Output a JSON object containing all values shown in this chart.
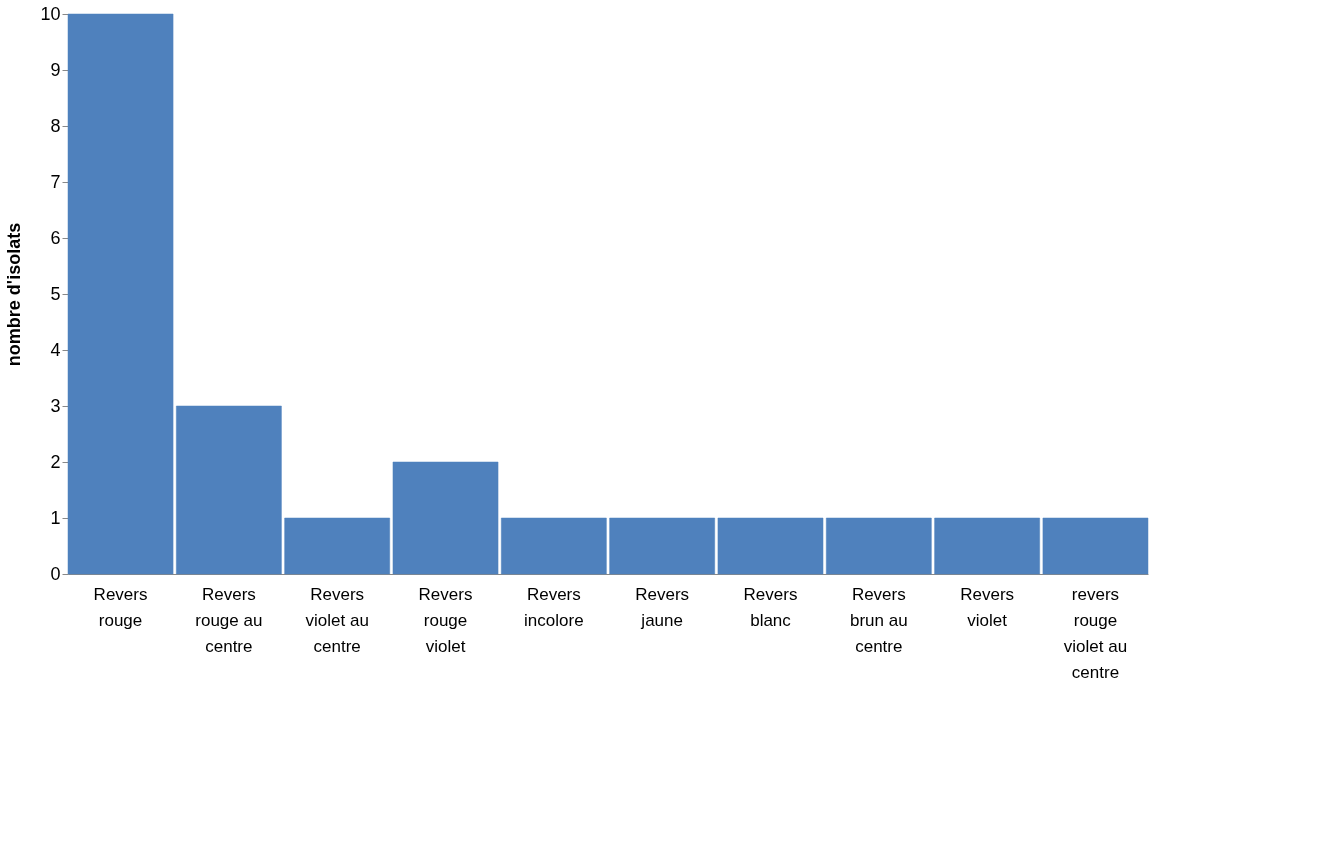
{
  "chart_data": {
    "type": "bar",
    "ylabel": "nombre d'isolats",
    "categories": [
      "Revers rouge",
      "Revers rouge au centre",
      "Revers violet au centre",
      "Revers rouge violet",
      "Revers incolore",
      "Revers jaune",
      "Revers blanc",
      "Revers brun au centre",
      "Revers violet",
      "revers rouge violet au centre"
    ],
    "values": [
      10,
      3,
      1,
      2,
      1,
      1,
      1,
      1,
      1,
      1
    ],
    "color": "#4f81bd",
    "ylim": [
      0,
      10
    ],
    "yticks": [
      0,
      1,
      2,
      3,
      4,
      5,
      6,
      7,
      8,
      9,
      10
    ],
    "grid": false
  }
}
